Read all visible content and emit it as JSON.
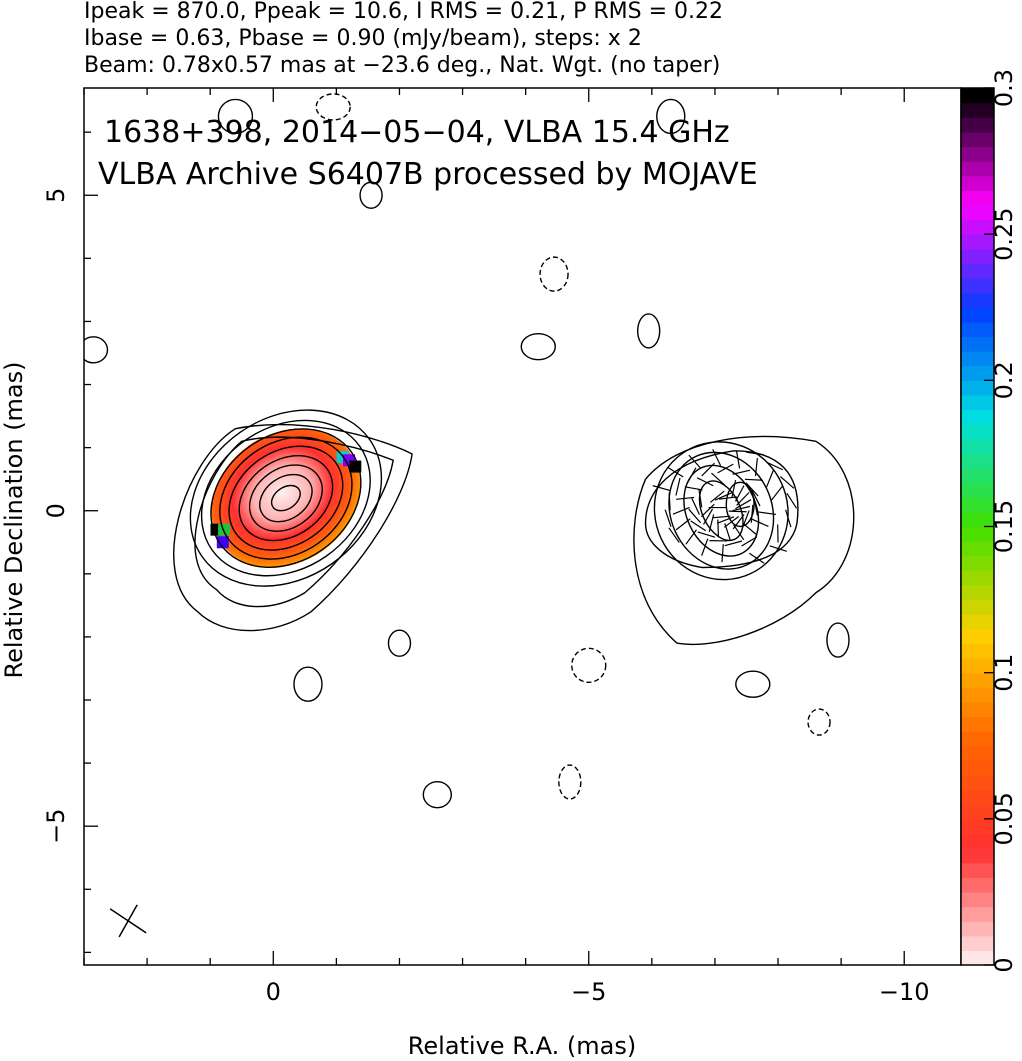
{
  "header": {
    "line1": "Ipeak = 870.0, Ppeak = 10.6, I RMS = 0.21, P RMS = 0.22",
    "line2": "Ibase = 0.63, Pbase = 0.90 (mJy/beam), steps: x 2",
    "line3": "Beam: 0.78x0.57 mas at −23.6 deg., Nat. Wgt. (no taper)"
  },
  "annotation": {
    "line1": "1638+398, 2014−05−04, VLBA 15.4 GHz",
    "line2": "VLBA Archive S6407B processed by MOJAVE"
  },
  "chart_data": {
    "type": "contour map with polarization color overlay",
    "xlabel": "Relative R.A. (mas)",
    "ylabel": "Relative Declination (mas)",
    "xlim": [
      3.0,
      -10.9
    ],
    "ylim": [
      -7.2,
      6.7
    ],
    "x_ticks": [
      0,
      -5,
      -10
    ],
    "x_tick_labels": [
      "0",
      "−5",
      "−10"
    ],
    "y_ticks": [
      5,
      0,
      -5
    ],
    "y_tick_labels": [
      "5",
      "0",
      "−5"
    ],
    "x_direction": "reversed",
    "colorbar": {
      "min": 0,
      "max": 0.3,
      "ticks": [
        0,
        0.05,
        0.1,
        0.15,
        0.2,
        0.25,
        0.3
      ],
      "tick_labels": [
        "0",
        "0.05",
        "0.1",
        "0.15",
        "0.2",
        "0.25",
        "0.3"
      ],
      "colors": [
        "#ffe6e6",
        "#ff3030",
        "#ff6400",
        "#ffd000",
        "#40e000",
        "#00e0e0",
        "#0040ff",
        "#ff00ff",
        "#000000"
      ]
    },
    "core": {
      "center": [
        -0.2,
        0.2
      ],
      "contour_radii_mas": [
        [
          0.25,
          0.17
        ],
        [
          0.45,
          0.33
        ],
        [
          0.62,
          0.47
        ],
        [
          0.8,
          0.6
        ],
        [
          0.97,
          0.74
        ],
        [
          1.12,
          0.88
        ],
        [
          1.27,
          1.0
        ],
        [
          1.43,
          1.12
        ],
        [
          1.62,
          1.27
        ]
      ],
      "pa_deg": 35
    },
    "jet_component": {
      "center": [
        -7.1,
        0.0
      ],
      "contour_radii_mas": [
        [
          0.3,
          0.5
        ],
        [
          0.55,
          0.75
        ],
        [
          0.8,
          0.95
        ],
        [
          1.05,
          1.1
        ]
      ],
      "pa_deg": 25
    },
    "noise_blobs": [
      {
        "x": -2.0,
        "y": -2.1,
        "type": "solid"
      },
      {
        "x": -0.55,
        "y": -2.75,
        "type": "solid"
      },
      {
        "x": -4.2,
        "y": 2.6,
        "type": "solid"
      },
      {
        "x": -5.95,
        "y": 2.85,
        "type": "solid"
      },
      {
        "x": 2.85,
        "y": 2.55,
        "type": "solid"
      },
      {
        "x": 0.6,
        "y": 6.25,
        "type": "solid"
      },
      {
        "x": -1.55,
        "y": 5.0,
        "type": "solid"
      },
      {
        "x": -6.3,
        "y": 6.25,
        "type": "solid"
      },
      {
        "x": -7.6,
        "y": -2.75,
        "type": "solid"
      },
      {
        "x": -8.95,
        "y": -2.05,
        "type": "solid"
      },
      {
        "x": -2.6,
        "y": -4.5,
        "type": "solid"
      },
      {
        "x": -5.0,
        "y": -2.45,
        "type": "dashed"
      },
      {
        "x": -8.65,
        "y": -3.35,
        "type": "dashed"
      },
      {
        "x": -4.45,
        "y": 3.75,
        "type": "dashed"
      },
      {
        "x": -0.95,
        "y": 6.4,
        "type": "dashed"
      },
      {
        "x": -4.7,
        "y": -4.3,
        "type": "dashed"
      }
    ]
  }
}
